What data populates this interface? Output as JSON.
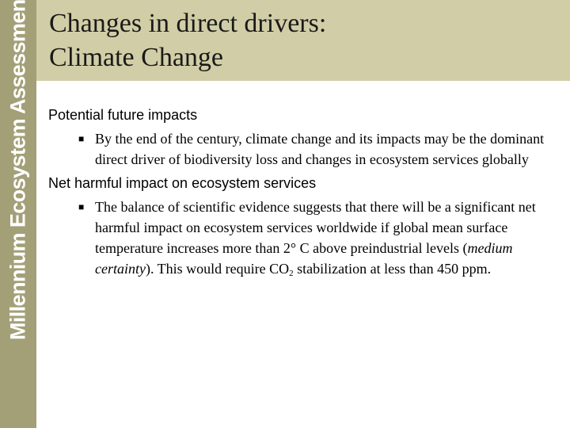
{
  "sidebar": {
    "brand": "Millennium Ecosystem Assessment"
  },
  "slide": {
    "title_line1": "Changes in direct drivers:",
    "title_line2": "Climate Change"
  },
  "sections": [
    {
      "heading": "Potential future impacts",
      "bullet": "By the end of the century, climate change and its impacts may be the dominant direct driver of biodiversity loss and changes in ecosystem services globally"
    },
    {
      "heading": "Net harmful impact on ecosystem services",
      "bullet_part1": "The balance of scientific evidence suggests that there will be a significant net harmful impact on ecosystem services worldwide if global mean surface temperature increases more than 2° C above preindustrial levels (",
      "bullet_italic": "medium certainty",
      "bullet_part2": ").  This would require CO",
      "bullet_sub": "2",
      "bullet_part3": " stabilization at less than 450 ppm."
    }
  ],
  "bullet_symbol": "■",
  "colors": {
    "sidebar": "#a3a078",
    "header": "#d1cda6"
  }
}
